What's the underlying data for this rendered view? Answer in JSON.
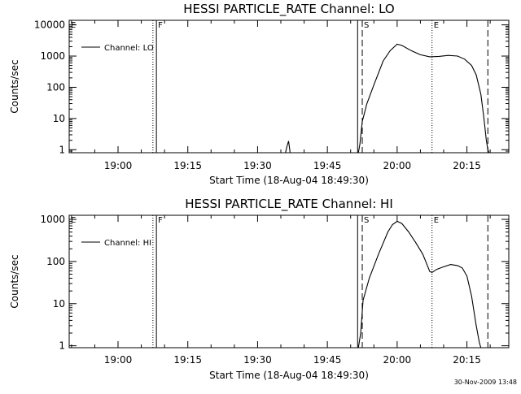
{
  "footer": {
    "timestamp": "30-Nov-2009 13:48"
  },
  "chart_data": [
    {
      "type": "line",
      "title": "HESSI PARTICLE_RATE Channel: LO",
      "xlabel": "Start Time (18-Aug-04 18:49:30)",
      "ylabel": "Counts/sec",
      "yscale": "log",
      "xlim": [
        "18:49:30",
        "20:24:00"
      ],
      "ylim": [
        0.8,
        14000
      ],
      "xticks": [
        "19:00",
        "19:15",
        "19:30",
        "19:45",
        "20:00",
        "20:15"
      ],
      "yticks": [
        {
          "value": 1,
          "label": "1"
        },
        {
          "value": 10,
          "label": "10"
        },
        {
          "value": 100,
          "label": "100"
        },
        {
          "value": 1000,
          "label": "1000"
        },
        {
          "value": 10000,
          "label": "10000"
        }
      ],
      "legend": {
        "label": "Channel: LO",
        "position": "top-left"
      },
      "markers": [
        {
          "time": "18:49:30",
          "label": "E",
          "style": "dotted"
        },
        {
          "time": "19:07:30",
          "label": "",
          "style": "dotted"
        },
        {
          "time": "19:08:15",
          "label": "F",
          "style": "solid"
        },
        {
          "time": "19:51:30",
          "label": "",
          "style": "solid"
        },
        {
          "time": "19:52:30",
          "label": "S",
          "style": "dashed"
        },
        {
          "time": "20:07:30",
          "label": "E",
          "style": "dotted"
        },
        {
          "time": "20:19:30",
          "label": "",
          "style": "dashed"
        },
        {
          "time": "20:25:00",
          "label": "",
          "style": "dotted"
        }
      ],
      "series": [
        {
          "x": [
            "19:36:00",
            "19:36:20",
            "19:36:40",
            "19:37:00",
            "19:51:40",
            "19:52:00",
            "19:52:30",
            "19:53:30",
            "19:55:00",
            "19:57:00",
            "19:58:30",
            "20:00:00",
            "20:01:00",
            "20:03:00",
            "20:05:00",
            "20:07:00",
            "20:09:00",
            "20:11:00",
            "20:13:00",
            "20:14:30",
            "20:16:00",
            "20:17:00",
            "20:18:00",
            "20:18:40",
            "20:19:10",
            "20:19:30",
            "20:19:45"
          ],
          "y": [
            0.8,
            1.3,
            1.9,
            0.8,
            0.8,
            1.5,
            8,
            30,
            120,
            700,
            1500,
            2400,
            2200,
            1500,
            1100,
            950,
            980,
            1050,
            1000,
            800,
            500,
            250,
            60,
            10,
            2,
            1,
            0.8
          ]
        }
      ]
    },
    {
      "type": "line",
      "title": "HESSI PARTICLE_RATE Channel: HI",
      "xlabel": "Start Time (18-Aug-04 18:49:30)",
      "ylabel": "Counts/sec",
      "yscale": "log",
      "xlim": [
        "18:49:30",
        "20:24:00"
      ],
      "ylim": [
        0.9,
        1250
      ],
      "xticks": [
        "19:00",
        "19:15",
        "19:30",
        "19:45",
        "20:00",
        "20:15"
      ],
      "yticks": [
        {
          "value": 1,
          "label": "1"
        },
        {
          "value": 10,
          "label": "10"
        },
        {
          "value": 100,
          "label": "100"
        },
        {
          "value": 1000,
          "label": "1000"
        }
      ],
      "legend": {
        "label": "Channel: HI",
        "position": "top-left"
      },
      "markers": [
        {
          "time": "18:49:30",
          "label": "E",
          "style": "dotted"
        },
        {
          "time": "19:07:30",
          "label": "",
          "style": "dotted"
        },
        {
          "time": "19:08:15",
          "label": "F",
          "style": "solid"
        },
        {
          "time": "19:51:30",
          "label": "",
          "style": "solid"
        },
        {
          "time": "19:52:30",
          "label": "S",
          "style": "dashed"
        },
        {
          "time": "20:07:30",
          "label": "E",
          "style": "dotted"
        },
        {
          "time": "20:19:30",
          "label": "",
          "style": "dashed"
        },
        {
          "time": "20:25:00",
          "label": "",
          "style": "dotted"
        }
      ],
      "series": [
        {
          "x": [
            "19:51:40",
            "19:52:10",
            "19:52:40",
            "19:54:00",
            "19:56:00",
            "19:58:00",
            "19:59:00",
            "20:00:00",
            "20:01:00",
            "20:02:30",
            "20:04:00",
            "20:05:30",
            "20:06:30",
            "20:07:00",
            "20:07:30",
            "20:08:30",
            "20:10:00",
            "20:11:30",
            "20:13:00",
            "20:14:00",
            "20:15:00",
            "20:16:00",
            "20:17:00",
            "20:17:40",
            "20:18:00"
          ],
          "y": [
            0.9,
            2,
            12,
            40,
            150,
            500,
            750,
            900,
            800,
            500,
            280,
            150,
            80,
            58,
            55,
            65,
            75,
            85,
            80,
            70,
            45,
            15,
            3,
            1.2,
            0.9
          ]
        }
      ]
    }
  ]
}
